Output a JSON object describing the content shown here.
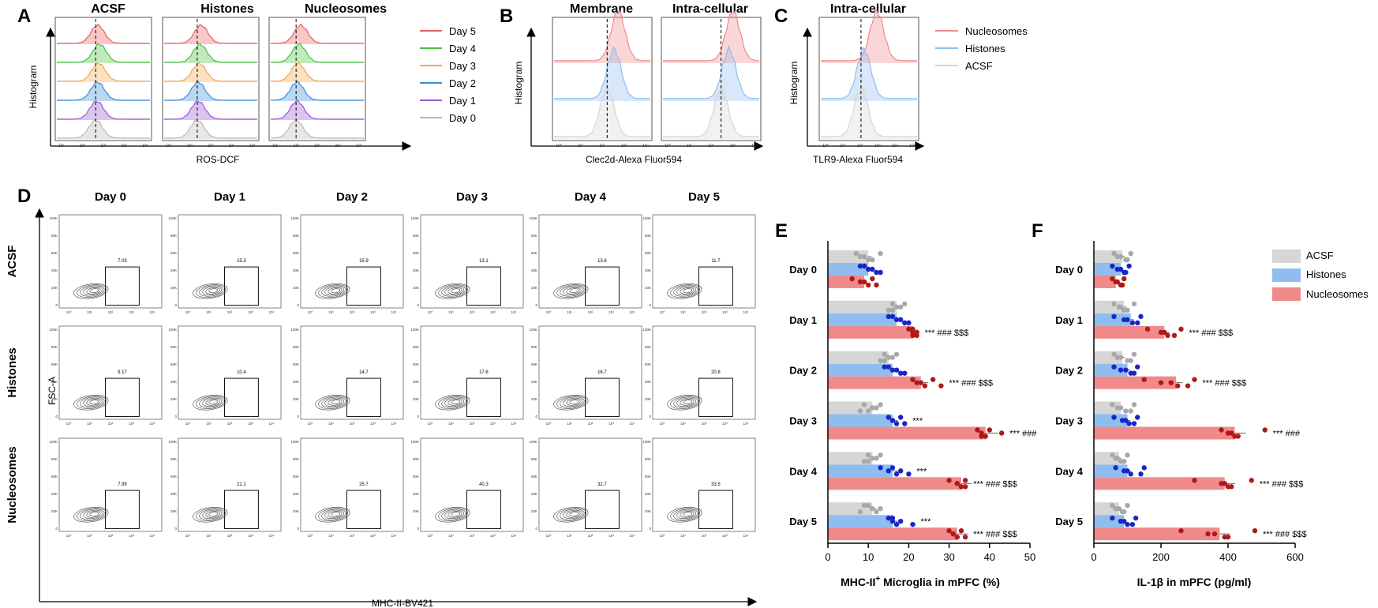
{
  "colors": {
    "day5": "#e8605e",
    "day4": "#4cbf45",
    "day3": "#f3a74e",
    "day2": "#3a8ed6",
    "day1": "#9b57d6",
    "day0": "#b9b9b9",
    "nucleosomes": "#f08a8a",
    "histones": "#8fbdf0",
    "acsf": "#d6d6d6",
    "acsf_dot": "#a8a8a8",
    "histones_dot": "#1726c7",
    "nucleosomes_dot": "#b01818",
    "contour": "#444444"
  },
  "panel_letters": {
    "A": "A",
    "B": "B",
    "C": "C",
    "D": "D",
    "E": "E",
    "F": "F"
  },
  "panelA": {
    "titles": [
      "ACSF",
      "Histones",
      "Nucleosomes"
    ],
    "ylabel": "Histogram",
    "xlabel": "ROS-DCF",
    "legend": [
      "Day 5",
      "Day 4",
      "Day 3",
      "Day 2",
      "Day 1",
      "Day 0"
    ],
    "legend_icons": [
      "day5",
      "day4",
      "day3",
      "day2",
      "day1",
      "day0"
    ],
    "peaks": [
      [
        0.44,
        0.46,
        0.45,
        0.44,
        0.43,
        0.42
      ],
      [
        0.4,
        0.39,
        0.38,
        0.37,
        0.37,
        0.36
      ],
      [
        0.33,
        0.31,
        0.3,
        0.29,
        0.29,
        0.28
      ]
    ],
    "ticks": [
      "10¹",
      "10²",
      "10³",
      "10⁴",
      "10⁵"
    ]
  },
  "panelB": {
    "titles": [
      "Membrane",
      "Intra-cellular"
    ],
    "ylabel": "Histogram",
    "xlabel": "Clec2d-Alexa Fluor594",
    "peaks": [
      [
        0.66,
        0.62,
        0.55
      ],
      [
        0.72,
        0.68,
        0.6
      ]
    ],
    "ticks": [
      "10⁰",
      "10¹",
      "10²",
      "10³",
      "10⁴"
    ]
  },
  "panelC": {
    "titles": [
      "Intra-cellular"
    ],
    "ylabel": "Histogram",
    "xlabel": "TLR9-Alexa Fluor594",
    "legend": [
      "Nucleosomes",
      "Histones",
      "ACSF"
    ],
    "legend_icons": [
      "nucleosomes",
      "histones",
      "acsf"
    ],
    "peaks": [
      [
        0.58,
        0.45,
        0.42
      ]
    ],
    "ticks": [
      "10⁰",
      "10¹",
      "10²",
      "10³",
      "10⁴",
      "10⁵"
    ]
  },
  "panelD": {
    "columns": [
      "Day 0",
      "Day 1",
      "Day 2",
      "Day 3",
      "Day 4",
      "Day 5"
    ],
    "rows": [
      "ACSF",
      "Histones",
      "Nucleosomes"
    ],
    "values": [
      [
        "7.03",
        "15.3",
        "15.9",
        "13.1",
        "13.6",
        "11.7"
      ],
      [
        "9.17",
        "10.4",
        "14.7",
        "17.6",
        "16.7",
        "20.8"
      ],
      [
        "7.99",
        "21.1",
        "25.7",
        "40.3",
        "32.7",
        "33.5"
      ]
    ],
    "ylabel": "FSC-A",
    "xlabel": "MHC-II-BV421",
    "yticks": [
      "100K",
      "80K",
      "60K",
      "40K",
      "20K",
      "0"
    ],
    "xticks": [
      "10⁰",
      "10¹",
      "10²",
      "10³",
      "10⁴"
    ]
  },
  "chart_data": [
    {
      "type": "bar",
      "orientation": "horizontal",
      "xlabel": "MHC-II",
      "xlabel_sup": "+",
      "xlabel_tail": " Microglia in mPFC (%)",
      "xlim": [
        0,
        50
      ],
      "xticks": [
        "0",
        "10",
        "20",
        "30",
        "40",
        "50"
      ],
      "categories": [
        "Day 0",
        "Day 1",
        "Day 2",
        "Day 3",
        "Day 4",
        "Day 5"
      ],
      "series": [
        {
          "name": "ACSF",
          "values": [
            10,
            17,
            15,
            11,
            11,
            11
          ],
          "points": [
            [
              7,
              9,
              11,
              13,
              8,
              10
            ],
            [
              16,
              18,
              15,
              19,
              17,
              16
            ],
            [
              14,
              16,
              13,
              17,
              15,
              14
            ],
            [
              9,
              12,
              10,
              13,
              11,
              8
            ],
            [
              10,
              12,
              9,
              13,
              11,
              10
            ],
            [
              9,
              11,
              12,
              10,
              13,
              8
            ]
          ]
        },
        {
          "name": "Histones",
          "values": [
            10,
            17,
            16,
            16,
            16,
            16
          ],
          "points": [
            [
              8,
              10,
              12,
              9,
              11,
              13
            ],
            [
              15,
              17,
              19,
              16,
              18,
              20
            ],
            [
              14,
              16,
              18,
              15,
              17,
              19
            ],
            [
              15,
              16,
              17,
              18,
              16,
              19
            ],
            [
              13,
              15,
              17,
              16,
              18,
              20
            ],
            [
              15,
              16,
              17,
              16,
              18,
              21
            ]
          ]
        },
        {
          "name": "Nucleosomes",
          "values": [
            9,
            21,
            23,
            39,
            33,
            32
          ],
          "points": [
            [
              6,
              8,
              10,
              11,
              9,
              12
            ],
            [
              20,
              21,
              22,
              21,
              22,
              21
            ],
            [
              21,
              22,
              24,
              26,
              23,
              28
            ],
            [
              37,
              38,
              39,
              40,
              43,
              38
            ],
            [
              30,
              32,
              33,
              34,
              32,
              34
            ],
            [
              30,
              31,
              32,
              33,
              31,
              34
            ]
          ]
        }
      ],
      "annotations": [
        {
          "category": "Day 1",
          "series": "Nucleosomes",
          "text": "*** ### $$$"
        },
        {
          "category": "Day 2",
          "series": "Nucleosomes",
          "text": "*** ### $$$"
        },
        {
          "category": "Day 3",
          "series": "Histones",
          "text": "***"
        },
        {
          "category": "Day 3",
          "series": "Nucleosomes",
          "text": "*** ###"
        },
        {
          "category": "Day 4",
          "series": "Histones",
          "text": "***"
        },
        {
          "category": "Day 4",
          "series": "Nucleosomes",
          "text": "*** ### $$$"
        },
        {
          "category": "Day 5",
          "series": "Histones",
          "text": "***"
        },
        {
          "category": "Day 5",
          "series": "Nucleosomes",
          "text": "*** ### $$$"
        }
      ]
    },
    {
      "type": "bar",
      "orientation": "horizontal",
      "xlabel": "IL-1β in mPFC (pg/ml)",
      "xlim": [
        0,
        600
      ],
      "xticks": [
        "0",
        "200",
        "400",
        "600"
      ],
      "categories": [
        "Day 0",
        "Day 1",
        "Day 2",
        "Day 3",
        "Day 4",
        "Day 5"
      ],
      "legend": [
        "ACSF",
        "Histones",
        "Nucleosomes"
      ],
      "series": [
        {
          "name": "ACSF",
          "values": [
            85,
            90,
            85,
            80,
            75,
            75
          ],
          "points": [
            [
              60,
              80,
              95,
              110,
              70,
              100
            ],
            [
              60,
              80,
              90,
              120,
              75,
              100
            ],
            [
              60,
              80,
              100,
              120,
              70,
              110
            ],
            [
              55,
              80,
              95,
              120,
              70,
              110
            ],
            [
              55,
              70,
              90,
              100,
              65,
              80
            ],
            [
              55,
              75,
              90,
              100,
              65,
              85
            ]
          ]
        },
        {
          "name": "Histones",
          "values": [
            80,
            110,
            100,
            100,
            100,
            90
          ],
          "points": [
            [
              55,
              70,
              90,
              105,
              80,
              95
            ],
            [
              60,
              90,
              115,
              140,
              100,
              130
            ],
            [
              60,
              80,
              110,
              130,
              95,
              120
            ],
            [
              60,
              85,
              105,
              130,
              95,
              120
            ],
            [
              65,
              90,
              110,
              150,
              100,
              140
            ],
            [
              55,
              80,
              100,
              125,
              90,
              115
            ]
          ]
        },
        {
          "name": "Nucleosomes",
          "values": [
            65,
            210,
            245,
            420,
            390,
            375
          ],
          "points": [
            [
              55,
              65,
              80,
              90,
              70,
              85
            ],
            [
              160,
              200,
              220,
              260,
              210,
              240
            ],
            [
              150,
              200,
              250,
              300,
              230,
              280
            ],
            [
              380,
              400,
              420,
              510,
              410,
              430
            ],
            [
              300,
              380,
              400,
              470,
              390,
              410
            ],
            [
              260,
              340,
              390,
              480,
              360,
              400
            ]
          ]
        }
      ],
      "annotations": [
        {
          "category": "Day 1",
          "series": "Nucleosomes",
          "text": "*** ### $$$"
        },
        {
          "category": "Day 2",
          "series": "Nucleosomes",
          "text": "*** ### $$$"
        },
        {
          "category": "Day 3",
          "series": "Nucleosomes",
          "text": "*** ###"
        },
        {
          "category": "Day 4",
          "series": "Nucleosomes",
          "text": "*** ### $$$"
        },
        {
          "category": "Day 5",
          "series": "Nucleosomes",
          "text": "*** ### $$$"
        }
      ]
    }
  ]
}
